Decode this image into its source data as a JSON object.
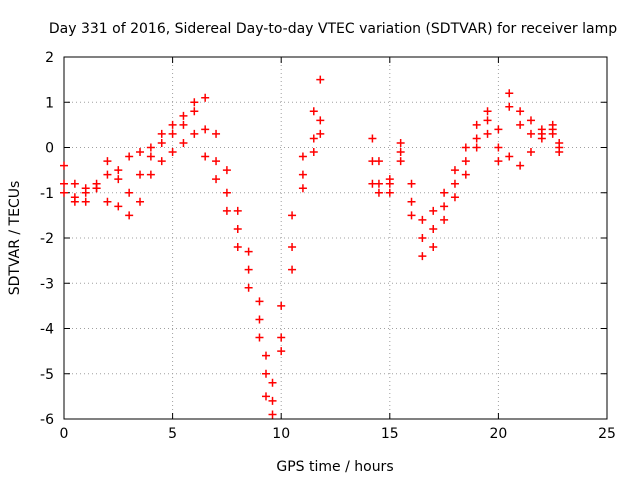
{
  "chart_data": {
    "type": "scatter",
    "title": "Day 331 of 2016, Sidereal Day-to-day VTEC variation (SDTVAR) for receiver lamp",
    "xlabel": "GPS time / hours",
    "ylabel": "SDTVAR / TECUs",
    "xlim": [
      0,
      25
    ],
    "ylim": [
      -6,
      2
    ],
    "xticks": [
      "0",
      "5",
      "10",
      "15",
      "20",
      "25"
    ],
    "yticks": [
      "2",
      "1",
      "0",
      "-1",
      "-2",
      "-3",
      "-4",
      "-5",
      "-6"
    ],
    "grid": true,
    "legend": "none",
    "marker": "plus",
    "color": "#ff0000",
    "series": [
      {
        "x": [
          0.0,
          0.5,
          1.0,
          1.5,
          2.0,
          2.5,
          3.0,
          3.5,
          4.0,
          4.5,
          5.0,
          5.5,
          6.0,
          6.5,
          7.0,
          7.5,
          8.0,
          8.5,
          9.0,
          9.3,
          9.6,
          10.0,
          10.5,
          11.0,
          11.5,
          11.8
        ],
        "y": [
          -0.4,
          -0.8,
          -1.0,
          -0.9,
          -0.6,
          -0.5,
          -0.2,
          -0.1,
          0.0,
          0.3,
          0.5,
          0.7,
          1.0,
          1.1,
          0.3,
          -0.5,
          -1.4,
          -2.3,
          -3.4,
          -4.6,
          -5.2,
          -3.5,
          -1.5,
          -0.2,
          0.8,
          1.5
        ]
      },
      {
        "x": [
          0.0,
          0.5,
          1.0,
          1.5,
          2.0,
          2.5,
          3.0,
          3.5,
          4.0,
          4.5,
          5.0,
          5.5,
          6.0,
          6.5,
          7.0,
          7.5,
          8.0,
          8.5,
          9.0,
          9.3,
          9.6,
          10.0,
          10.5,
          11.0,
          11.5,
          11.8
        ],
        "y": [
          -0.8,
          -1.1,
          -1.2,
          -0.8,
          -0.3,
          -0.7,
          -1.0,
          -0.6,
          -0.2,
          0.1,
          0.3,
          0.5,
          0.8,
          0.4,
          -0.3,
          -1.0,
          -1.8,
          -2.7,
          -3.8,
          -5.0,
          -5.6,
          -4.2,
          -2.2,
          -0.6,
          0.2,
          0.6
        ]
      },
      {
        "x": [
          0.0,
          0.5,
          1.0,
          1.5,
          2.0,
          2.5,
          3.0,
          3.5,
          4.0,
          4.5,
          5.0,
          5.5,
          6.0,
          6.5,
          7.0,
          7.5,
          8.0,
          8.5,
          9.0,
          9.3,
          9.6,
          10.0,
          10.5,
          11.0,
          11.5,
          11.8
        ],
        "y": [
          -1.0,
          -1.2,
          -0.9,
          -0.9,
          -1.2,
          -1.3,
          -1.5,
          -1.2,
          -0.6,
          -0.3,
          -0.1,
          0.1,
          0.3,
          -0.2,
          -0.7,
          -1.4,
          -2.2,
          -3.1,
          -4.2,
          -5.5,
          -5.9,
          -4.5,
          -2.7,
          -0.9,
          -0.1,
          0.3
        ]
      },
      {
        "x": [
          14.2,
          14.5,
          15.0,
          15.5,
          16.0,
          16.5,
          17.0,
          17.5,
          18.0,
          18.5,
          19.0,
          19.5,
          20.0,
          20.5,
          21.0,
          21.5,
          22.0,
          22.5,
          22.8
        ],
        "y": [
          0.2,
          -0.3,
          -0.7,
          0.1,
          -0.8,
          -1.6,
          -1.4,
          -1.0,
          -0.5,
          0.0,
          0.5,
          0.8,
          0.4,
          1.2,
          0.8,
          0.6,
          0.3,
          0.4,
          0.0
        ]
      },
      {
        "x": [
          14.2,
          14.5,
          15.0,
          15.5,
          16.0,
          16.5,
          17.0,
          17.5,
          18.0,
          18.5,
          19.0,
          19.5,
          20.0,
          20.5,
          21.0,
          21.5,
          22.0,
          22.5,
          22.8
        ],
        "y": [
          -0.3,
          -0.8,
          -1.0,
          -0.3,
          -1.2,
          -2.0,
          -1.8,
          -1.3,
          -0.8,
          -0.3,
          0.2,
          0.6,
          0.0,
          0.9,
          0.5,
          0.3,
          0.2,
          0.5,
          0.1
        ]
      },
      {
        "x": [
          14.2,
          14.5,
          15.0,
          15.5,
          16.0,
          16.5,
          17.0,
          17.5,
          18.0,
          18.5,
          19.0,
          19.5,
          20.0,
          20.5,
          21.0,
          21.5,
          22.0,
          22.5,
          22.8
        ],
        "y": [
          -0.8,
          -1.0,
          -0.8,
          -0.1,
          -1.5,
          -2.4,
          -2.2,
          -1.6,
          -1.1,
          -0.6,
          0.0,
          0.3,
          -0.3,
          -0.2,
          -0.4,
          -0.1,
          0.4,
          0.3,
          -0.1
        ]
      }
    ]
  }
}
